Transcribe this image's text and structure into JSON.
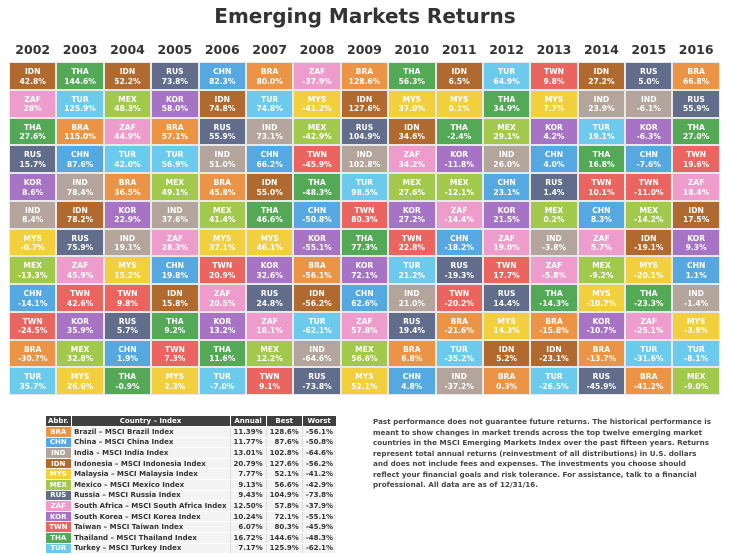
{
  "chart_data": {
    "type": "table",
    "title": "Emerging Markets Returns",
    "years": [
      "2002",
      "2003",
      "2004",
      "2005",
      "2006",
      "2007",
      "2008",
      "2009",
      "2010",
      "2011",
      "2012",
      "2013",
      "2014",
      "2015",
      "2016"
    ],
    "columns": [
      [
        [
          "IDN",
          "42.8%"
        ],
        [
          "ZAF",
          "28%"
        ],
        [
          "THA",
          "27.6%"
        ],
        [
          "RUS",
          "15.7%"
        ],
        [
          "KOR",
          "8.6%"
        ],
        [
          "IND",
          "8.4%"
        ],
        [
          "MYS",
          "-0.7%"
        ],
        [
          "MEX",
          "-13.3%"
        ],
        [
          "CHN",
          "-14.1%"
        ],
        [
          "TWN",
          "-24.5%"
        ],
        [
          "BRA",
          "-30.7%"
        ],
        [
          "TUR",
          "35.7%"
        ]
      ],
      [
        [
          "THA",
          "144.6%"
        ],
        [
          "TUR",
          "125.9%"
        ],
        [
          "BRA",
          "115.0%"
        ],
        [
          "CHN",
          "87.6%"
        ],
        [
          "IND",
          "78.4%"
        ],
        [
          "IDN",
          "78.2%"
        ],
        [
          "RUS",
          "75.9%"
        ],
        [
          "ZAF",
          "45.9%"
        ],
        [
          "TWN",
          "42.6%"
        ],
        [
          "KOR",
          "35.9%"
        ],
        [
          "MEX",
          "32.8%"
        ],
        [
          "MYS",
          "26.6%"
        ]
      ],
      [
        [
          "IDN",
          "52.2%"
        ],
        [
          "MEX",
          "48.3%"
        ],
        [
          "ZAF",
          "44.9%"
        ],
        [
          "TUR",
          "42.0%"
        ],
        [
          "BRA",
          "36.5%"
        ],
        [
          "KOR",
          "22.9%"
        ],
        [
          "IND",
          "19.1%"
        ],
        [
          "MYS",
          "15.2%"
        ],
        [
          "TWN",
          "9.8%"
        ],
        [
          "RUS",
          "5.7%"
        ],
        [
          "CHN",
          "1.9%"
        ],
        [
          "THA",
          "-0.9%"
        ]
      ],
      [
        [
          "RUS",
          "73.8%"
        ],
        [
          "KOR",
          "58.0%"
        ],
        [
          "BRA",
          "57.1%"
        ],
        [
          "TUR",
          "56.9%"
        ],
        [
          "MEX",
          "49.1%"
        ],
        [
          "IND",
          "37.6%"
        ],
        [
          "ZAF",
          "28.3%"
        ],
        [
          "CHN",
          "19.8%"
        ],
        [
          "IDN",
          "15.8%"
        ],
        [
          "THA",
          "9.2%"
        ],
        [
          "TWN",
          "7.3%"
        ],
        [
          "MYS",
          "2.3%"
        ]
      ],
      [
        [
          "CHN",
          "82.3%"
        ],
        [
          "IDN",
          "74.8%"
        ],
        [
          "RUS",
          "55.9%"
        ],
        [
          "IND",
          "51.0%"
        ],
        [
          "BRA",
          "45.8%"
        ],
        [
          "MEX",
          "41.4%"
        ],
        [
          "MYS",
          "37.1%"
        ],
        [
          "TWN",
          "20.9%"
        ],
        [
          "ZAF",
          "20.5%"
        ],
        [
          "KOR",
          "13.2%"
        ],
        [
          "THA",
          "11.6%"
        ],
        [
          "TUR",
          "-7.0%"
        ]
      ],
      [
        [
          "BRA",
          "80.0%"
        ],
        [
          "TUR",
          "74.8%"
        ],
        [
          "IND",
          "73.1%"
        ],
        [
          "CHN",
          "66.2%"
        ],
        [
          "IDN",
          "55.0%"
        ],
        [
          "THA",
          "46.6%"
        ],
        [
          "MYS",
          "46.1%"
        ],
        [
          "KOR",
          "32.6%"
        ],
        [
          "RUS",
          "24.8%"
        ],
        [
          "ZAF",
          "18.1%"
        ],
        [
          "MEX",
          "12.2%"
        ],
        [
          "TWN",
          "9.1%"
        ]
      ],
      [
        [
          "ZAF",
          "-37.9%"
        ],
        [
          "MYS",
          "-41.2%"
        ],
        [
          "MEX",
          "-42.9%"
        ],
        [
          "TWN",
          "-45.9%"
        ],
        [
          "THA",
          "-48.3%"
        ],
        [
          "CHN",
          "-50.8%"
        ],
        [
          "KOR",
          "-55.1%"
        ],
        [
          "BRA",
          "-56.1%"
        ],
        [
          "IDN",
          "-56.2%"
        ],
        [
          "TUR",
          "-62.1%"
        ],
        [
          "IND",
          "-64.6%"
        ],
        [
          "RUS",
          "-73.8%"
        ]
      ],
      [
        [
          "BRA",
          "128.6%"
        ],
        [
          "IDN",
          "127.6%"
        ],
        [
          "RUS",
          "104.9%"
        ],
        [
          "IND",
          "102.8%"
        ],
        [
          "TUR",
          "98.5%"
        ],
        [
          "TWN",
          "80.3%"
        ],
        [
          "THA",
          "77.3%"
        ],
        [
          "KOR",
          "72.1%"
        ],
        [
          "CHN",
          "62.6%"
        ],
        [
          "ZAF",
          "57.8%"
        ],
        [
          "MEX",
          "56.6%"
        ],
        [
          "MYS",
          "52.1%"
        ]
      ],
      [
        [
          "THA",
          "56.3%"
        ],
        [
          "MYS",
          "37.0%"
        ],
        [
          "IDN",
          "34.6%"
        ],
        [
          "ZAF",
          "34.2%"
        ],
        [
          "MEX",
          "27.6%"
        ],
        [
          "KOR",
          "27.2%"
        ],
        [
          "TWN",
          "22.8%"
        ],
        [
          "TUR",
          "21.2%"
        ],
        [
          "IND",
          "21.0%"
        ],
        [
          "RUS",
          "19.4%"
        ],
        [
          "BRA",
          "6.8%"
        ],
        [
          "CHN",
          "4.8%"
        ]
      ],
      [
        [
          "IDN",
          "6.5%"
        ],
        [
          "MYS",
          "0.1%"
        ],
        [
          "THA",
          "-2.4%"
        ],
        [
          "KOR",
          "-11.8%"
        ],
        [
          "MEX",
          "-12.1%"
        ],
        [
          "ZAF",
          "-14.4%"
        ],
        [
          "CHN",
          "-18.2%"
        ],
        [
          "RUS",
          "-19.3%"
        ],
        [
          "TWN",
          "-20.2%"
        ],
        [
          "BRA",
          "-21.6%"
        ],
        [
          "TUR",
          "-35.2%"
        ],
        [
          "IND",
          "-37.2%"
        ]
      ],
      [
        [
          "TUR",
          "64.9%"
        ],
        [
          "THA",
          "34.9%"
        ],
        [
          "MEX",
          "29.1%"
        ],
        [
          "IND",
          "26.0%"
        ],
        [
          "CHN",
          "23.1%"
        ],
        [
          "KOR",
          "21.5%"
        ],
        [
          "ZAF",
          "19.0%"
        ],
        [
          "TWN",
          "17.7%"
        ],
        [
          "RUS",
          "14.4%"
        ],
        [
          "MYS",
          "14.3%"
        ],
        [
          "IDN",
          "5.2%"
        ],
        [
          "BRA",
          "0.3%"
        ]
      ],
      [
        [
          "TWN",
          "9.8%"
        ],
        [
          "MYS",
          "7.7%"
        ],
        [
          "KOR",
          "4.2%"
        ],
        [
          "CHN",
          "4.0%"
        ],
        [
          "RUS",
          "1.4%"
        ],
        [
          "MEX",
          "0.2%"
        ],
        [
          "IND",
          "-3.8%"
        ],
        [
          "ZAF",
          "-5.8%"
        ],
        [
          "THA",
          "-14.3%"
        ],
        [
          "BRA",
          "-15.8%"
        ],
        [
          "IDN",
          "-23.1%"
        ],
        [
          "TUR",
          "-26.5%"
        ]
      ],
      [
        [
          "IDN",
          "27.2%"
        ],
        [
          "IND",
          "23.9%"
        ],
        [
          "TUR",
          "19.1%"
        ],
        [
          "THA",
          "16.8%"
        ],
        [
          "TWN",
          "10.1%"
        ],
        [
          "CHN",
          "8.3%"
        ],
        [
          "ZAF",
          "5.7%"
        ],
        [
          "MEX",
          "-9.2%"
        ],
        [
          "MYS",
          "-10.7%"
        ],
        [
          "KOR",
          "-10.7%"
        ],
        [
          "BRA",
          "-13.7%"
        ],
        [
          "RUS",
          "-45.9%"
        ]
      ],
      [
        [
          "RUS",
          "5.0%"
        ],
        [
          "IND",
          "-6.1%"
        ],
        [
          "KOR",
          "-6.3%"
        ],
        [
          "CHN",
          "-7.6%"
        ],
        [
          "TWN",
          "-11.0%"
        ],
        [
          "MEX",
          "-14.2%"
        ],
        [
          "IDN",
          "-19.1%"
        ],
        [
          "MYS",
          "-20.1%"
        ],
        [
          "THA",
          "-23.3%"
        ],
        [
          "ZAF",
          "-25.1%"
        ],
        [
          "TUR",
          "-31.6%"
        ],
        [
          "BRA",
          "-41.2%"
        ]
      ],
      [
        [
          "BRA",
          "66.8%"
        ],
        [
          "RUS",
          "55.9%"
        ],
        [
          "THA",
          "27.0%"
        ],
        [
          "TWN",
          "19.6%"
        ],
        [
          "ZAF",
          "18.4%"
        ],
        [
          "IDN",
          "17.5%"
        ],
        [
          "KOR",
          "9.3%"
        ],
        [
          "CHN",
          "1.1%"
        ],
        [
          "IND",
          "-1.4%"
        ],
        [
          "MYS",
          "-3.9%"
        ],
        [
          "TUR",
          "-8.1%"
        ],
        [
          "MEX",
          "-9.0%"
        ]
      ]
    ]
  },
  "colors": {
    "BRA": "#ec9446",
    "CHN": "#56a8e0",
    "IND": "#b3a49c",
    "IDN": "#b06a30",
    "MYS": "#f2cf3d",
    "MEX": "#a2c94c",
    "RUS": "#626d8b",
    "ZAF": "#ee9ccb",
    "KOR": "#a673c5",
    "TWN": "#ea6560",
    "THA": "#54a957",
    "TUR": "#6ccbec"
  },
  "legend": {
    "headers": [
      "Abbr.",
      "Country – Index",
      "Annual",
      "Best",
      "Worst"
    ],
    "rows": [
      [
        "BRA",
        "Brazil – MSCI Brazil Index",
        "11.39%",
        "128.6%",
        "-56.1%"
      ],
      [
        "CHN",
        "China – MSCI China Index",
        "11.77%",
        "87.6%",
        "-50.8%"
      ],
      [
        "IND",
        "India – MSCI India Index",
        "13.01%",
        "102.8%",
        "-64.6%"
      ],
      [
        "IDN",
        "Indonesia – MSCI Indonesia Index",
        "20.79%",
        "127.6%",
        "-56.2%"
      ],
      [
        "MYS",
        "Malaysia – MSCI Malaysia Index",
        "7.77%",
        "52.1%",
        "-41.2%"
      ],
      [
        "MEX",
        "Mexico – MSCI Mexico Index",
        "9.13%",
        "56.6%",
        "-42.9%"
      ],
      [
        "RUS",
        "Russia – MSCI Russia Index",
        "9.43%",
        "104.9%",
        "-73.8%"
      ],
      [
        "ZAF",
        "South Africa – MSCI South Africa Index",
        "12.50%",
        "57.8%",
        "-37.9%"
      ],
      [
        "KOR",
        "South Korea – MSCI Korea Index",
        "10.24%",
        "72.1%",
        "-55.1%"
      ],
      [
        "TWN",
        "Taiwan – MSCI Taiwan Index",
        "6.07%",
        "80.3%",
        "-45.9%"
      ],
      [
        "THA",
        "Thailand – MSCI Thailand Index",
        "16.72%",
        "144.6%",
        "-48.3%"
      ],
      [
        "TUR",
        "Turkey – MSCI Turkey Index",
        "7.17%",
        "125.9%",
        "-62.1%"
      ]
    ]
  },
  "note": "Past performance does not guarantee future returns. The historical performance is meant to show changes in market trends across the top twelve emerging market countries in the MSCI Emerging Markets Index over the past fifteen years. Returns represent total annual returns (reinvestment of all distributions) in U.S. dollars and does not include fees and expenses. The investments you choose should reflect your financial goals and risk tolerance. For assistance, talk to a financial professional. All data are as of 12/31/16."
}
